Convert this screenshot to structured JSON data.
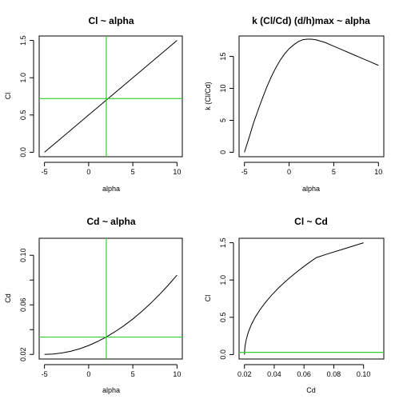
{
  "chart_data": [
    {
      "type": "line",
      "title": "Cl ~ alpha",
      "xlabel": "alpha",
      "ylabel": "Cl",
      "xlim": [
        -5.6,
        10.6
      ],
      "ylim": [
        -0.06,
        1.56
      ],
      "xticks": [
        -5,
        0,
        5,
        10
      ],
      "xtick_labels": [
        "-5",
        "0",
        "5",
        "10"
      ],
      "yticks": [
        0.0,
        0.5,
        1.0,
        1.5
      ],
      "ytick_labels": [
        "0.0",
        "0.5",
        "1.0",
        "1.5"
      ],
      "series": [
        {
          "x": [
            -5,
            -2.5,
            0,
            2.5,
            5,
            7.5,
            10
          ],
          "y": [
            0.0,
            0.25,
            0.5,
            0.75,
            1.0,
            1.25,
            1.5
          ],
          "color": "#000000"
        }
      ],
      "vlines": [
        {
          "x": 2,
          "color": "#33cc33"
        }
      ],
      "hlines": [
        {
          "y": 0.72,
          "color": "#33cc33"
        }
      ]
    },
    {
      "type": "line",
      "title": "k (Cl/Cd) (d/h)max ~ alpha",
      "xlabel": "alpha",
      "ylabel": "k (Cl/Cd)",
      "xlim": [
        -5.6,
        10.6
      ],
      "ylim": [
        -0.7,
        18.2
      ],
      "xticks": [
        -5,
        0,
        5,
        10
      ],
      "xtick_labels": [
        "-5",
        "0",
        "5",
        "10"
      ],
      "yticks": [
        0,
        5,
        10,
        15
      ],
      "ytick_labels": [
        "0",
        "5",
        "10",
        "15"
      ],
      "series": [
        {
          "x": [
            -5,
            -4.5,
            -4,
            -3.5,
            -3,
            -2.5,
            -2,
            -1.5,
            -1,
            -0.5,
            0,
            0.5,
            1,
            1.5,
            2,
            2.5,
            3,
            4,
            5,
            6,
            7,
            8,
            9,
            10
          ],
          "y": [
            0,
            2.2,
            4.5,
            6.5,
            8.4,
            10.2,
            11.8,
            13.2,
            14.4,
            15.4,
            16.2,
            16.8,
            17.3,
            17.6,
            17.7,
            17.7,
            17.6,
            17.2,
            16.6,
            16.0,
            15.4,
            14.8,
            14.2,
            13.6
          ],
          "color": "#000000"
        }
      ],
      "vlines": [],
      "hlines": []
    },
    {
      "type": "line",
      "title": "Cd ~ alpha",
      "xlabel": "alpha",
      "ylabel": "Cd",
      "xlim": [
        -5.6,
        10.6
      ],
      "ylim": [
        0.0163,
        0.1137
      ],
      "xticks": [
        -5,
        0,
        5,
        10
      ],
      "xtick_labels": [
        "-5",
        "0",
        "5",
        "10"
      ],
      "yticks": [
        0.02,
        0.04,
        0.06,
        0.08,
        0.1
      ],
      "ytick_labels": [
        "0.02",
        "",
        "0.06",
        "",
        "0.10"
      ],
      "series": [
        {
          "x": [
            -5,
            -4,
            -3,
            -2,
            -1,
            0,
            1,
            2,
            3,
            4,
            5,
            6,
            7,
            8,
            9,
            10
          ],
          "y": [
            0.02,
            0.0203,
            0.0212,
            0.0226,
            0.0246,
            0.0272,
            0.0304,
            0.0341,
            0.0384,
            0.0432,
            0.0486,
            0.0546,
            0.0611,
            0.0682,
            0.0758,
            0.084
          ],
          "color": "#000000"
        }
      ],
      "vlines": [
        {
          "x": 2,
          "color": "#33cc33"
        }
      ],
      "hlines": [
        {
          "y": 0.034,
          "color": "#33cc33"
        }
      ]
    },
    {
      "type": "line",
      "title": "Cl ~ Cd",
      "xlabel": "Cd",
      "ylabel": "Cl",
      "xlim": [
        0.0164,
        0.1136
      ],
      "ylim": [
        -0.06,
        1.56
      ],
      "xticks": [
        0.02,
        0.04,
        0.06,
        0.08,
        0.1
      ],
      "xtick_labels": [
        "0.02",
        "0.04",
        "0.06",
        "0.08",
        "0.10"
      ],
      "yticks": [
        0.0,
        0.5,
        1.0,
        1.5
      ],
      "ytick_labels": [
        "0.0",
        "0.5",
        "1.0",
        "1.5"
      ],
      "series": [
        {
          "x": [
            0.02,
            0.0203,
            0.0212,
            0.0226,
            0.0246,
            0.0272,
            0.0304,
            0.0341,
            0.0384,
            0.0432,
            0.0486,
            0.0546,
            0.0611,
            0.0682,
            0.0758,
            0.084,
            0.1
          ],
          "y": [
            0.0,
            0.1,
            0.2,
            0.3,
            0.4,
            0.5,
            0.6,
            0.7,
            0.8,
            0.9,
            1.0,
            1.1,
            1.2,
            1.3,
            1.35,
            1.4,
            1.5
          ],
          "color": "#000000"
        }
      ],
      "vlines": [],
      "hlines": [
        {
          "y": 0.03,
          "color": "#33cc33"
        }
      ]
    }
  ]
}
